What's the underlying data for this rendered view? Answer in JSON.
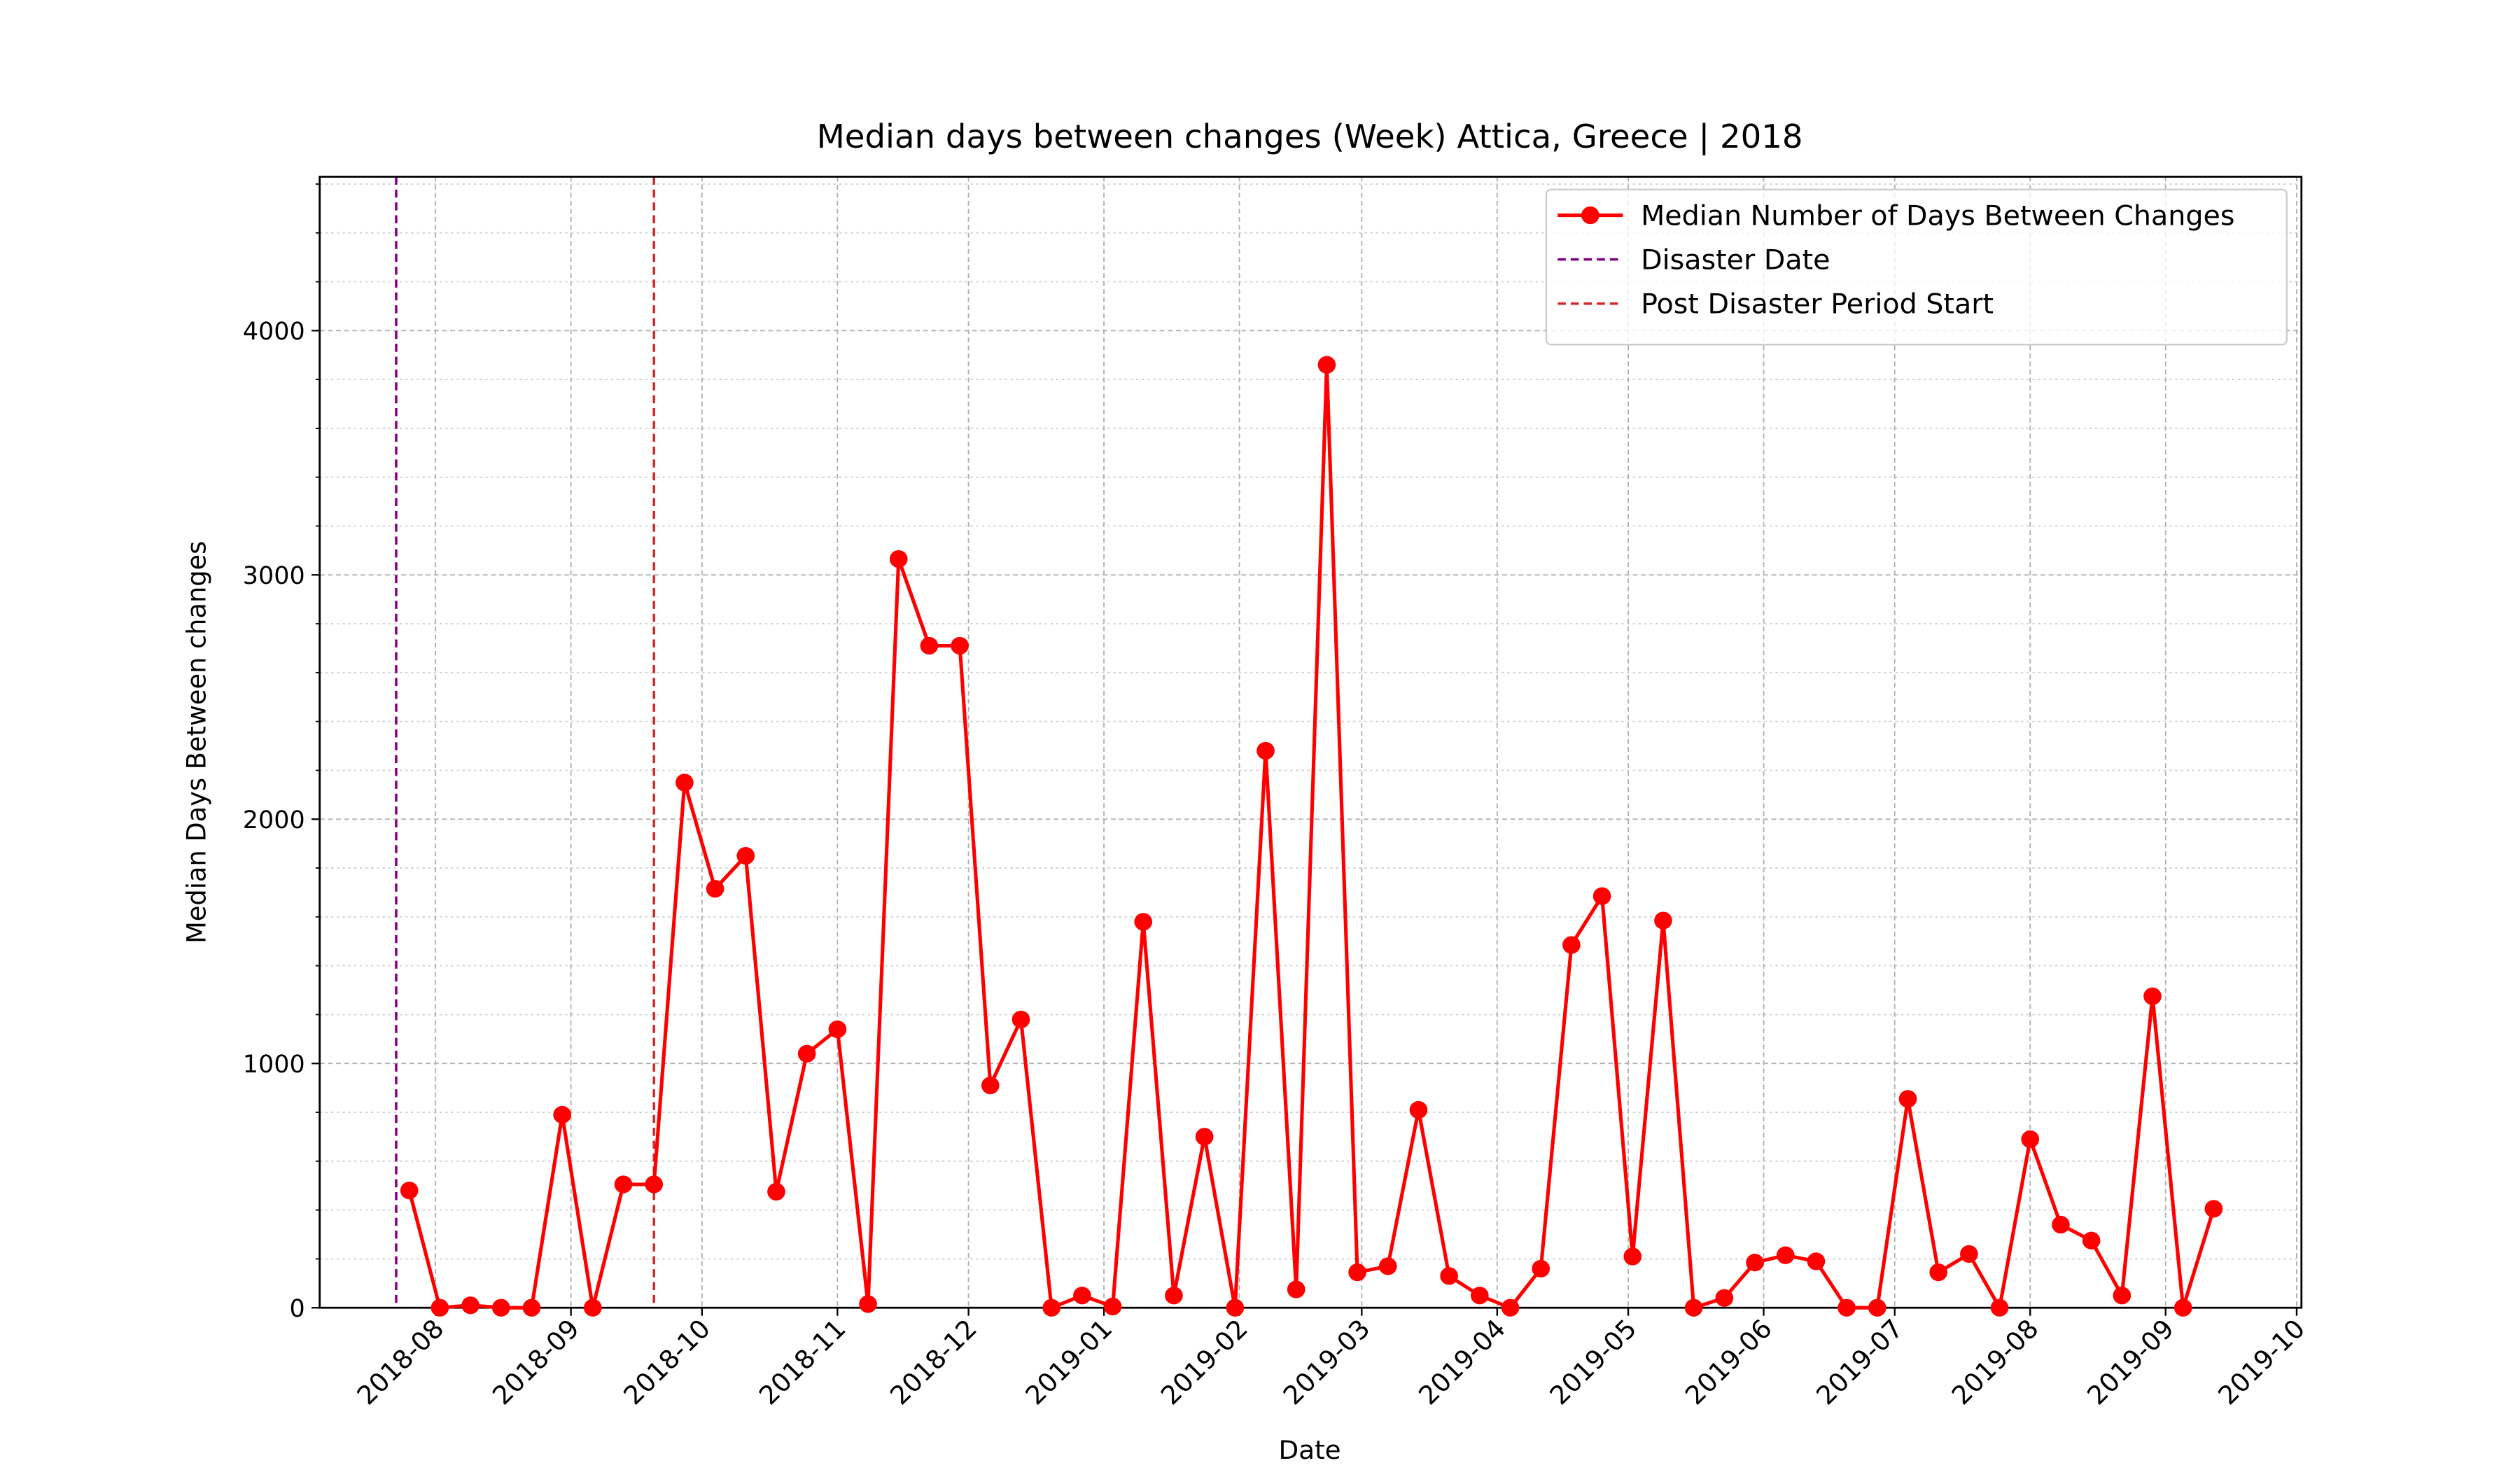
{
  "chart_data": {
    "type": "line",
    "title": "Median days between changes (Week) Attica, Greece | 2018",
    "xlabel": "Date",
    "ylabel": "Median Days Between changes",
    "categories": [
      null,
      null,
      null,
      null,
      null,
      null,
      null,
      null,
      null,
      null,
      null,
      null,
      null,
      null,
      null,
      null,
      null,
      null,
      null,
      null,
      null,
      null,
      null,
      null,
      null,
      null,
      null,
      null,
      null,
      null,
      null,
      null,
      null,
      null,
      null,
      null,
      null,
      null,
      null,
      null,
      null,
      null,
      null,
      null,
      null,
      null,
      null,
      null,
      null,
      null,
      null,
      null,
      null,
      null,
      null,
      null,
      null,
      null,
      null,
      null
    ],
    "series": [
      {
        "name": "Median Number of Days Between Changes",
        "color": "#ff0000",
        "values": [
          480,
          0,
          10,
          0,
          0,
          790,
          0,
          505,
          505,
          2150,
          1715,
          1850,
          475,
          1040,
          1140,
          15,
          3065,
          2710,
          2710,
          910,
          1180,
          0,
          50,
          5,
          1580,
          50,
          700,
          0,
          2280,
          75,
          3860,
          145,
          170,
          810,
          130,
          50,
          0,
          160,
          1485,
          1685,
          210,
          1585,
          0,
          40,
          185,
          215,
          190,
          0,
          0,
          855,
          145,
          220,
          0,
          690,
          340,
          275,
          50,
          1275,
          0,
          405
        ]
      }
    ],
    "vlines": [
      {
        "name": "Disaster Date",
        "x": -0.429,
        "color": "#800080"
      },
      {
        "name": "Post Disaster Period Start",
        "x": 8,
        "color": "#d62728"
      }
    ],
    "xlim": [
      -2.93,
      61.87
    ],
    "xticks": [
      {
        "value": 0.857,
        "label": "2018-08"
      },
      {
        "value": 5.286,
        "label": "2018-09"
      },
      {
        "value": 9.571,
        "label": "2018-10"
      },
      {
        "value": 14,
        "label": "2018-11"
      },
      {
        "value": 18.286,
        "label": "2018-12"
      },
      {
        "value": 22.714,
        "label": "2019-01"
      },
      {
        "value": 27.143,
        "label": "2019-02"
      },
      {
        "value": 31.143,
        "label": "2019-03"
      },
      {
        "value": 35.571,
        "label": "2019-04"
      },
      {
        "value": 39.857,
        "label": "2019-05"
      },
      {
        "value": 44.286,
        "label": "2019-06"
      },
      {
        "value": 48.571,
        "label": "2019-07"
      },
      {
        "value": 53,
        "label": "2019-08"
      },
      {
        "value": 57.429,
        "label": "2019-09"
      },
      {
        "value": 61.714,
        "label": "2019-10"
      }
    ],
    "ylim": [
      0,
      4630
    ],
    "yticks": [
      0,
      1000,
      2000,
      3000,
      4000
    ],
    "yminorticks": [
      200,
      400,
      600,
      800,
      1200,
      1400,
      1600,
      1800,
      2200,
      2400,
      2600,
      2800,
      3200,
      3400,
      3600,
      3800,
      4200,
      4400,
      4600
    ],
    "grid": true,
    "legend": "upper right"
  }
}
